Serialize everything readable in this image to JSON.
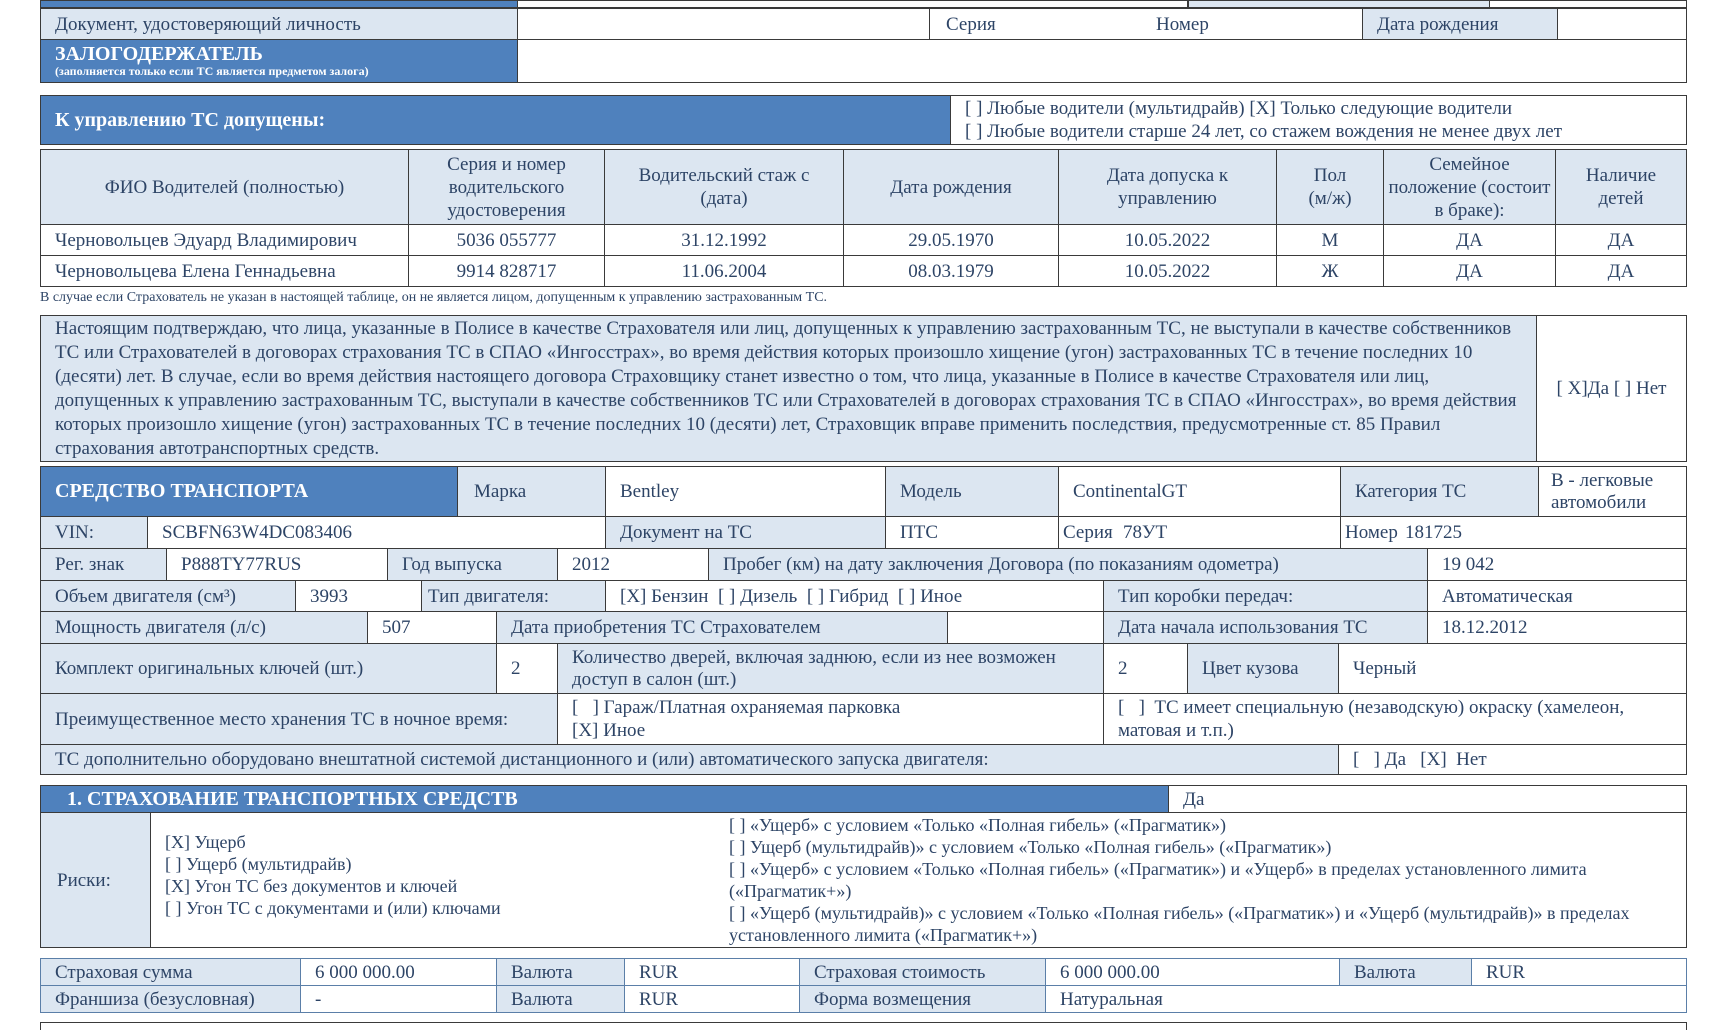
{
  "colors": {
    "header_blue": "#4f81bd",
    "label_bg": "#dce6f1",
    "text": "#2d4466",
    "border": "#3a3a3a"
  },
  "identity": {
    "doc_label": "Документ, удостоверяющий личность",
    "series_label": "Серия",
    "number_label": "Номер",
    "birth_label": "Дата рождения"
  },
  "pledgee": {
    "title": "ЗАЛОГОДЕРЖАТЕЛЬ",
    "subtitle": "(заполняется только если ТС является предметом залога)"
  },
  "drivers": {
    "title": "К управлению ТС допущены:",
    "option1": "[   ] Любые водители (мультидрайв) [X] Только следующие водители",
    "option2": "[ ] Любые водители старше 24 лет, со стажем вождения не менее двух лет",
    "headers": [
      "ФИО Водителей (полностью)",
      "Серия и номер водительского удостоверения",
      "Водительский стаж с (дата)",
      "Дата рождения",
      "Дата допуска к управлению",
      "Пол (м/ж)",
      "Семейное положение (состоит в браке):",
      "Наличие детей"
    ],
    "rows": [
      [
        "Черновольцев Эдуард Владимирович",
        "5036 055777",
        "31.12.1992",
        "29.05.1970",
        "10.05.2022",
        "М",
        "ДА",
        "ДА"
      ],
      [
        "Черновольцева Елена Геннадьевна",
        "9914 828717",
        "11.06.2004",
        "08.03.1979",
        "10.05.2022",
        "Ж",
        "ДА",
        "ДА"
      ]
    ],
    "note": "В случае если Страхователь не указан в настоящей таблице, он не является лицом, допущенным к управлению застрахованным ТС."
  },
  "declaration": {
    "text": "Настоящим подтверждаю, что лица, указанные в Полисе в качестве Страхователя или лиц, допущенных к управлению застрахованным ТС, не выступали в качестве собственников ТС или Страхователей в договорах страхования ТС в СПАО «Ингосстрах», во время действия которых произошло хищение (угон) застрахованных ТС в течение последних 10 (десяти) лет. В случае, если во время действия настоящего договора Страховщику станет известно о том, что лица, указанные в Полисе в качестве Страхователя или лиц, допущенных к управлению застрахованным ТС, выступали в качестве собственников ТС или Страхователей в договорах страхования ТС в СПАО «Ингосстрах», во время действия которых произошло хищение (угон) застрахованных ТС в течение последних 10 (десяти) лет, Страховщик вправе применить последствия, предусмотренные ст. 85 Правил страхования автотранспортных средств.",
    "answer": "[ X]Да [ ] Нет"
  },
  "vehicle": {
    "title": "СРЕДСТВО ТРАНСПОРТА",
    "make_label": "Марка",
    "make": "Bentley",
    "model_label": "Модель",
    "model": "ContinentalGT",
    "category_label": "Категория ТС",
    "category": "B - легковые автомобили",
    "vin_label": "VIN:",
    "vin": "SCBFN63W4DC083406",
    "doc_label": "Документ на ТС",
    "doc": "ПТС",
    "doc_series_label": "Серия",
    "doc_series": "78УТ",
    "doc_number_label": "Номер",
    "doc_number": "181725",
    "reg_label": "Рег. знак",
    "reg": "P888TY77RUS",
    "year_label": "Год выпуска",
    "year": "2012",
    "mileage_label": "Пробег (км) на дату заключения Договора (по показаниям одометра)",
    "mileage": "19 042",
    "engine_volume_label": "Объем двигателя (см³)",
    "engine_volume": "3993",
    "engine_type_label": "Тип двигателя:",
    "engine_type": "[X] Бензин  [ ] Дизель  [ ] Гибрид  [ ] Иное",
    "gearbox_label": "Тип коробки передач:",
    "gearbox": "Автоматическая",
    "power_label": "Мощность двигателя (л/с)",
    "power": "507",
    "purchase_date_label": "Дата приобретения ТС Страхователем",
    "purchase_date": "",
    "start_date_label": "Дата начала использования ТС",
    "start_date": "18.12.2012",
    "keys_label": "Комплект оригинальных ключей (шт.)",
    "keys": "2",
    "doors_label": "Количество дверей, включая заднюю, если из нее возможен доступ в салон (шт.)",
    "doors": "2",
    "color_label": "Цвет кузова",
    "color": "Черный",
    "storage_label": "Преимущественное место хранения ТС в ночное время:",
    "storage_option1": "[   ] Гараж/Платная охраняемая парковка",
    "storage_option2": "[X] Иное",
    "paint_option": "[   ]  ТС имеет специальную (незаводскую) окраску (хамелеон, матовая и т.п.)",
    "remote_start_label": "ТС дополнительно оборудовано внештатной системой дистанционного и (или) автоматического запуска двигателя:",
    "remote_start": "[   ] Да   [X]  Нет"
  },
  "insurance": {
    "title": "1. СТРАХОВАНИЕ ТРАНСПОРТНЫХ СРЕДСТВ",
    "enabled": "Да",
    "risks_label": "Риски:",
    "risks_left": [
      "[X] Ущерб",
      "[   ] Ущерб (мультидрайв)",
      "[X] Угон ТС без документов и ключей",
      "[   ] Угон ТС с документами и (или) ключами"
    ],
    "risks_right": [
      "[   ] «Ущерб» с условием «Только «Полная гибель» («Прагматик»)",
      "[   ] Ущерб (мультидрайв)» с условием «Только «Полная гибель» («Прагматик»)",
      "[   ] «Ущерб» с условием «Только «Полная гибель» («Прагматик») и «Ущерб» в пределах установленного лимита («Прагматик+»)",
      "[   ] «Ущерб (мультидрайв)» с условием «Только «Полная гибель» («Прагматик») и «Ущерб (мультидрайв)» в пределах установленного лимита («Прагматик+»)"
    ],
    "sum_label": "Страховая сумма",
    "sum": "6 000 000.00",
    "currency_label": "Валюта",
    "currency": "RUR",
    "value_label": "Страховая стоимость",
    "value": "6 000 000.00",
    "value_currency": "RUR",
    "deductible_label": "Франшиза (безусловная)",
    "deductible": "-",
    "deductible_currency": "RUR",
    "compensation_label": "Форма возмещения",
    "compensation": "Натуральная"
  }
}
